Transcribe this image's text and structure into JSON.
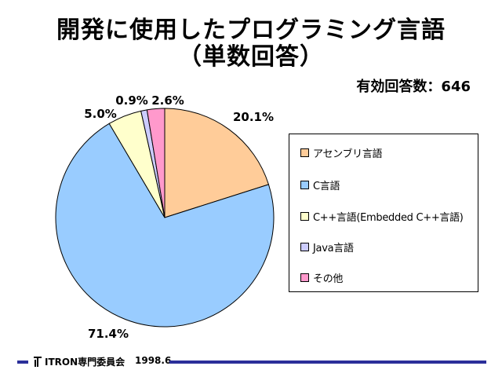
{
  "slide": {
    "title_line1": "開発に使用したプログラミング言語",
    "title_line2": "（単数回答）",
    "respondents": "有効回答数：646"
  },
  "chart_data": {
    "type": "pie",
    "title": "開発に使用したプログラミング言語（単数回答）",
    "start_angle_deg": 0,
    "direction": "clockwise",
    "slices": [
      {
        "name": "アセンブリ言語",
        "value": 20.1,
        "label": "20.1%",
        "color": "#ffcc99"
      },
      {
        "name": "C言語",
        "value": 71.4,
        "label": "71.4%",
        "color": "#99ccff"
      },
      {
        "name": "C++言語(Embedded C++言語)",
        "value": 5.0,
        "label": "5.0%",
        "color": "#ffffcc"
      },
      {
        "name": "Java言語",
        "value": 0.9,
        "label": "0.9%",
        "color": "#ccccff"
      },
      {
        "name": "その他",
        "value": 2.6,
        "label": "2.6%",
        "color": "#ff99cc"
      }
    ],
    "legend_position": "right"
  },
  "footer": {
    "organization": "ITRON専門委員会",
    "date": "1998.6",
    "bar_color": "#2b2f9a"
  }
}
